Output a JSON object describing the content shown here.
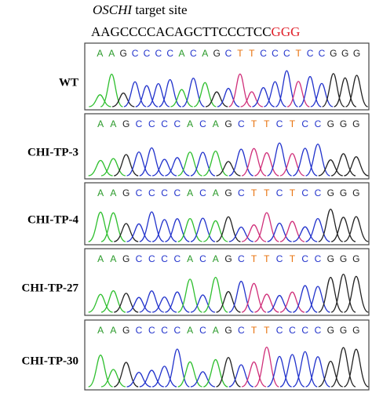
{
  "header": {
    "gene": "OSCHI",
    "title": "target site"
  },
  "reference": {
    "target": "AAGCCCCACAGCTTCCCTCC",
    "pam": "GGG"
  },
  "panels": [
    {
      "label": "WT",
      "sequence": [
        "A",
        "A",
        "G",
        "C",
        "C",
        "C",
        "C",
        "A",
        "C",
        "A",
        "G",
        "C",
        "T",
        "T",
        "C",
        "C",
        "C",
        "T",
        "C",
        "C",
        "G",
        "G",
        "G"
      ]
    },
    {
      "label": "CHI-TP-3",
      "sequence": [
        "A",
        "A",
        "G",
        "C",
        "C",
        "C",
        "C",
        "A",
        "C",
        "A",
        "G",
        "C",
        "T",
        "T",
        "C",
        "T",
        "C",
        "C",
        "G",
        "G",
        "G"
      ]
    },
    {
      "label": "CHI-TP-4",
      "sequence": [
        "A",
        "A",
        "G",
        "C",
        "C",
        "C",
        "C",
        "A",
        "C",
        "A",
        "G",
        "C",
        "T",
        "T",
        "C",
        "T",
        "C",
        "C",
        "G",
        "G",
        "G"
      ]
    },
    {
      "label": "CHI-TP-27",
      "sequence": [
        "A",
        "A",
        "G",
        "C",
        "C",
        "C",
        "C",
        "A",
        "C",
        "A",
        "G",
        "C",
        "T",
        "T",
        "C",
        "T",
        "C",
        "C",
        "G",
        "G",
        "G"
      ]
    },
    {
      "label": "CHI-TP-30",
      "sequence": [
        "A",
        "A",
        "G",
        "C",
        "C",
        "C",
        "C",
        "A",
        "C",
        "A",
        "G",
        "C",
        "T",
        "T",
        "C",
        "C",
        "C",
        "C",
        "G",
        "G",
        "G"
      ]
    }
  ]
}
